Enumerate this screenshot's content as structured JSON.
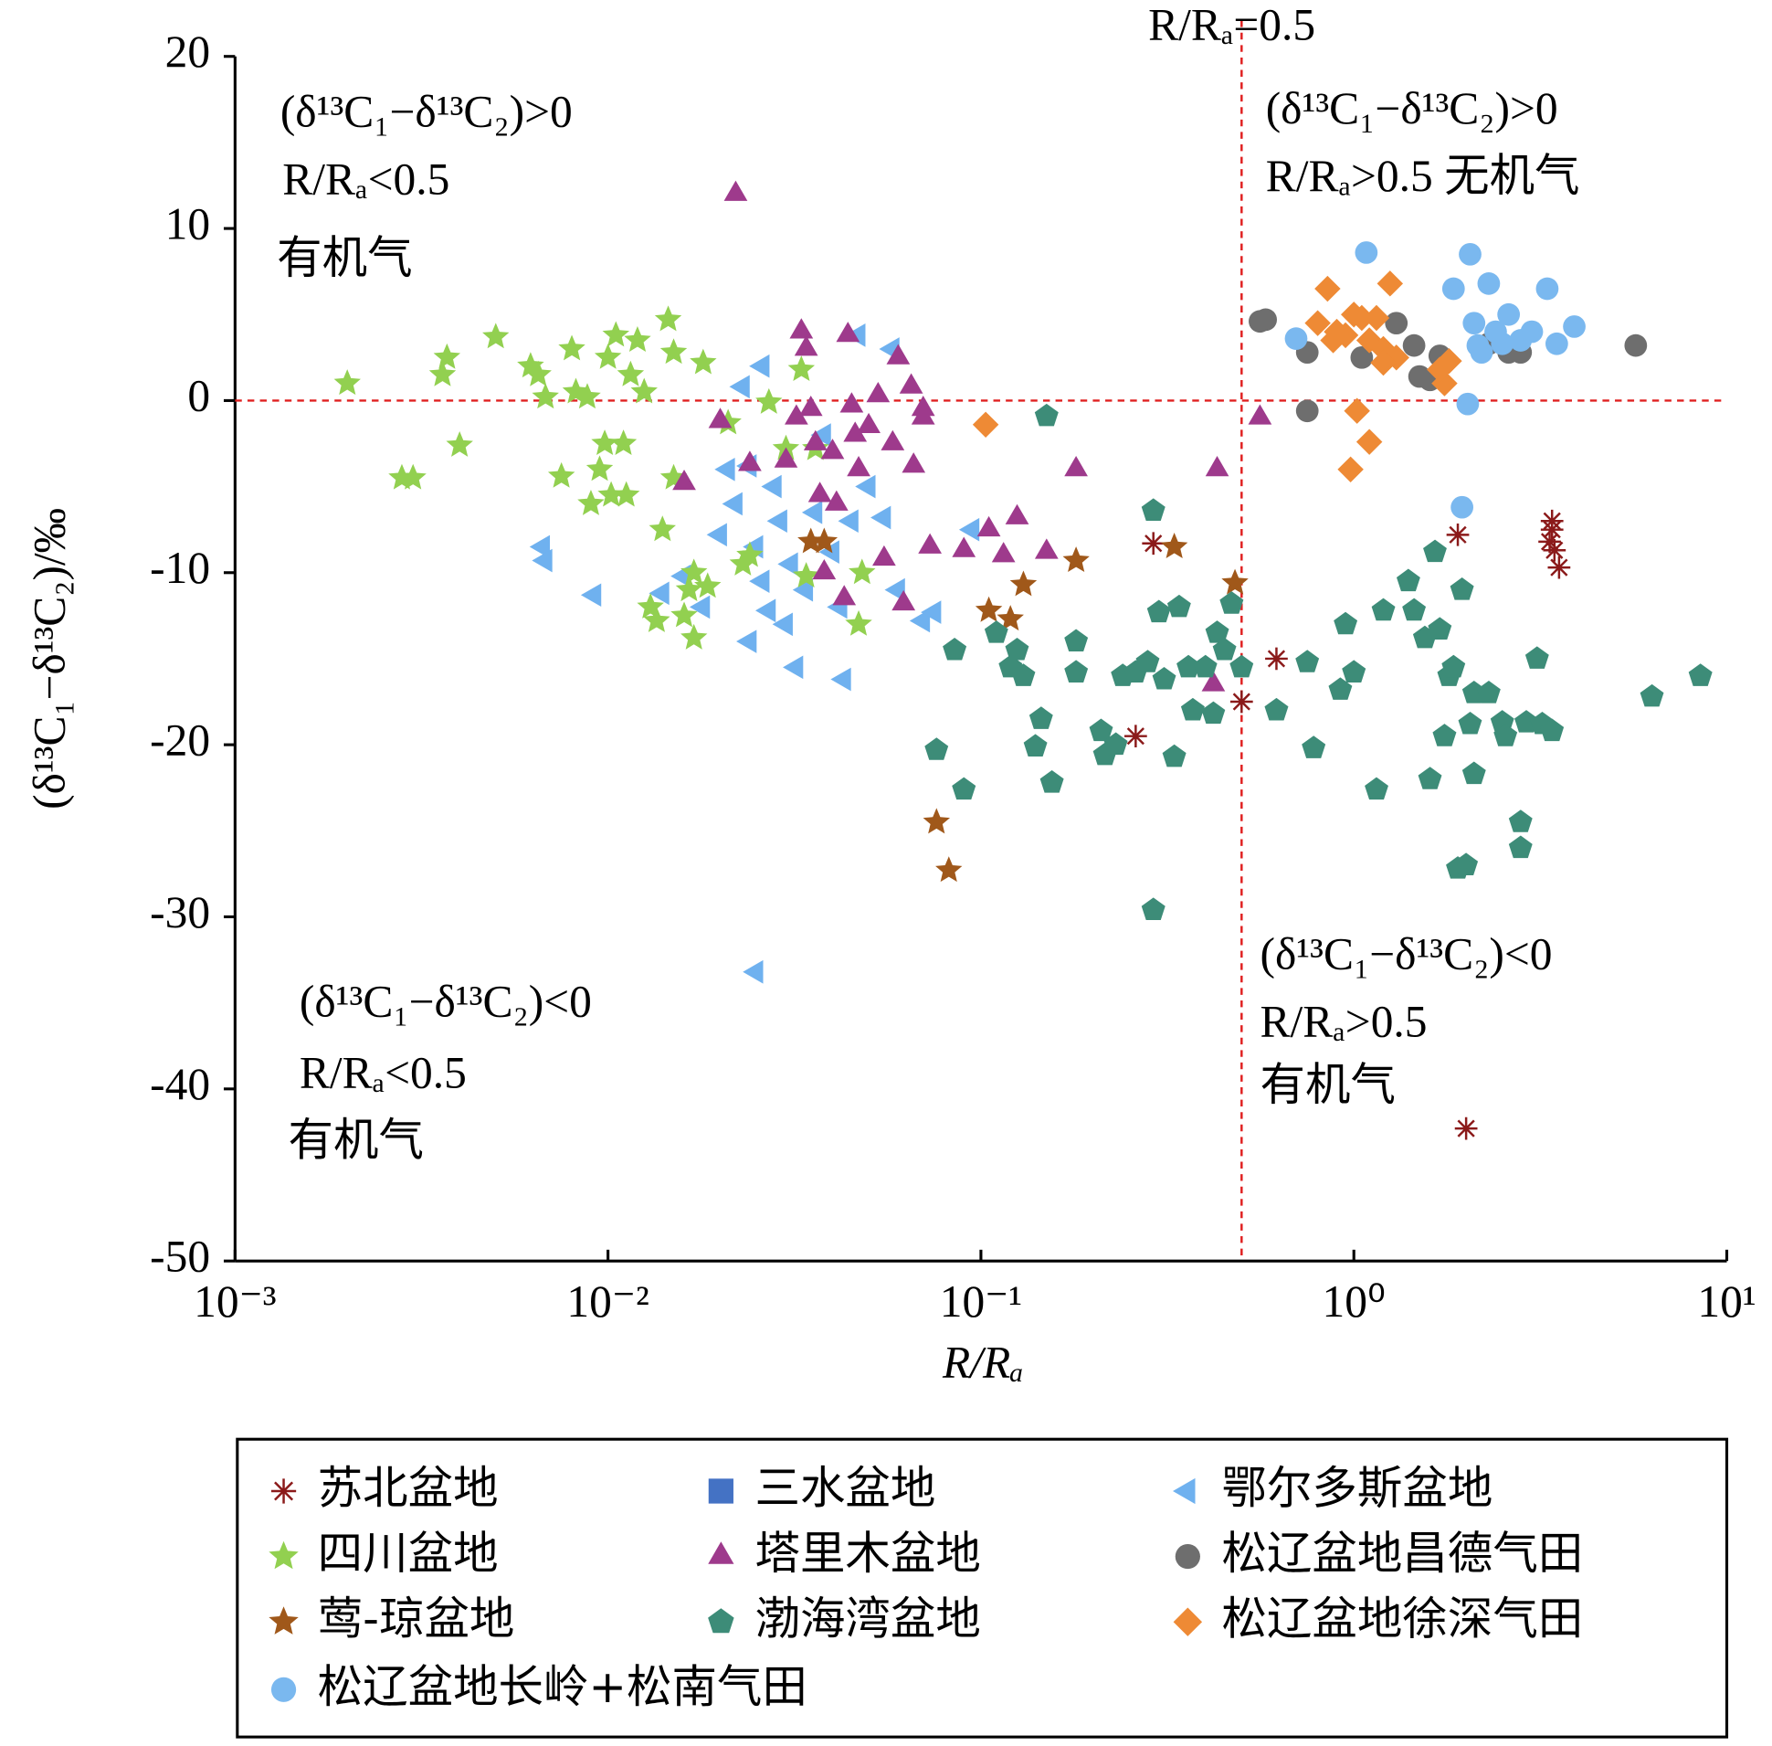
{
  "chart_data": {
    "type": "scatter",
    "x_label": "R/Rₐ",
    "y_label": "(δ¹³C₁−δ¹³C₂)/‰",
    "xlog": true,
    "xlim": [
      0.001,
      10
    ],
    "ylim": [
      -50,
      20
    ],
    "xticks": [
      {
        "value": 0.001,
        "label": "10⁻³"
      },
      {
        "value": 0.01,
        "label": "10⁻²"
      },
      {
        "value": 0.1,
        "label": "10⁻¹"
      },
      {
        "value": 1,
        "label": "10⁰"
      },
      {
        "value": 10,
        "label": "10¹"
      }
    ],
    "yticks": [
      20,
      10,
      0,
      -10,
      -20,
      -30,
      -40,
      -50
    ],
    "vline": 0.5,
    "hline": 0,
    "ref_color": "#e02020",
    "annotations": [
      "R/Rₐ=0.5",
      "(δ¹³C₁−δ¹³C₂)>0",
      "R/Rₐ<0.5",
      "有机气",
      "(δ¹³C₁−δ¹³C₂)>0",
      "R/Rₐ>0.5   无机气",
      "(δ¹³C₁−δ¹³C₂)<0",
      "R/Rₐ>0.5",
      "有机气",
      "(δ¹³C₁−δ¹³C₂)<0",
      "R/Rₐ<0.5",
      "有机气"
    ],
    "series": [
      {
        "name": "苏北盆地",
        "marker": "asterisk",
        "color": "#8b1a1a",
        "x": [
          0.29,
          0.62,
          0.5,
          0.26,
          1.9,
          3.4,
          3.4,
          3.35,
          3.45,
          3.55,
          2.0
        ],
        "values": [
          -8.3,
          -15,
          -17.5,
          -19.5,
          -7.8,
          -7.0,
          -7.5,
          -8.2,
          -8.7,
          -9.7,
          -42.3
        ]
      },
      {
        "name": "三水盆地",
        "marker": "square",
        "color": "#4472c4",
        "x": [],
        "values": []
      },
      {
        "name": "鄂尔多斯盆地",
        "marker": "triangle-left",
        "color": "#6fb1ef",
        "x": [
          0.0067,
          0.0068,
          0.0092,
          0.014,
          0.016,
          0.018,
          0.02,
          0.022,
          0.024,
          0.025,
          0.026,
          0.027,
          0.028,
          0.029,
          0.03,
          0.031,
          0.032,
          0.034,
          0.036,
          0.038,
          0.04,
          0.042,
          0.043,
          0.045,
          0.047,
          0.05,
          0.055,
          0.058,
          0.06,
          0.07,
          0.075,
          0.095,
          0.025,
          0.023,
          0.026,
          0.021,
          0.024
        ],
        "values": [
          -8.5,
          -9.3,
          -11.3,
          -11.2,
          -10.2,
          -12.0,
          -7.8,
          -6.0,
          -3.8,
          -8.5,
          -10.5,
          -12.2,
          -5.0,
          -7.0,
          -13.0,
          -9.5,
          -15.5,
          -11.0,
          -6.5,
          -2.0,
          -8.8,
          -12.0,
          -16.2,
          -7.0,
          3.8,
          -5.0,
          -6.8,
          3.0,
          -11.0,
          -12.8,
          -12.3,
          -7.5,
          -33.2,
          0.8,
          2.0,
          -4.0,
          -14.0
        ]
      },
      {
        "name": "四川盆地",
        "marker": "star",
        "color": "#92d050",
        "x": [
          0.002,
          0.0028,
          0.003,
          0.0036,
          0.0037,
          0.004,
          0.005,
          0.0062,
          0.0065,
          0.0068,
          0.0075,
          0.008,
          0.0082,
          0.0088,
          0.009,
          0.0095,
          0.0098,
          0.01,
          0.0102,
          0.0105,
          0.011,
          0.0112,
          0.0115,
          0.012,
          0.0125,
          0.013,
          0.0135,
          0.014,
          0.0145,
          0.015,
          0.015,
          0.016,
          0.0165,
          0.017,
          0.017,
          0.018,
          0.0185,
          0.021,
          0.023,
          0.024,
          0.027,
          0.03,
          0.033,
          0.034,
          0.036,
          0.048,
          0.047
        ],
        "values": [
          1.0,
          -4.5,
          -4.5,
          1.5,
          2.5,
          -2.6,
          3.7,
          2.0,
          1.5,
          0.2,
          -4.4,
          3.0,
          0.5,
          0.2,
          -6.0,
          -4.0,
          -2.5,
          2.5,
          -5.5,
          3.8,
          -2.5,
          -5.5,
          1.5,
          3.5,
          0.5,
          -12.0,
          -12.8,
          -7.5,
          4.7,
          -4.5,
          2.8,
          -12.5,
          -11.0,
          -13.8,
          -10.0,
          2.2,
          -10.8,
          -1.3,
          -9.5,
          -9.0,
          -0.1,
          -2.8,
          1.8,
          -10.2,
          -2.8,
          -10.0,
          -13.0
        ]
      },
      {
        "name": "塔里木盆地",
        "marker": "triangle-up",
        "color": "#9e3a8c",
        "x": [
          0.022,
          0.016,
          0.02,
          0.024,
          0.03,
          0.032,
          0.033,
          0.034,
          0.035,
          0.036,
          0.037,
          0.038,
          0.04,
          0.041,
          0.043,
          0.044,
          0.045,
          0.046,
          0.047,
          0.05,
          0.053,
          0.055,
          0.058,
          0.06,
          0.062,
          0.065,
          0.066,
          0.07,
          0.073,
          0.09,
          0.105,
          0.115,
          0.125,
          0.15,
          0.18,
          0.43,
          0.56,
          0.42,
          0.07
        ],
        "values": [
          12.0,
          -4.8,
          -1.2,
          -3.7,
          -3.5,
          -1.0,
          4.0,
          3.0,
          -0.5,
          -2.5,
          -5.5,
          -10.0,
          -3.0,
          -6.0,
          -11.5,
          3.8,
          -0.3,
          -2.0,
          -4.0,
          -1.5,
          0.3,
          -9.2,
          -2.5,
          2.5,
          -11.8,
          0.8,
          -3.8,
          -0.5,
          -8.5,
          -8.7,
          -7.5,
          -9.0,
          -6.8,
          -8.8,
          -4.0,
          -4.0,
          -1.0,
          -16.5,
          -1.0
        ]
      },
      {
        "name": "松辽盆地昌德气田",
        "marker": "circle",
        "color": "#6e6e6e",
        "x": [
          0.56,
          0.58,
          0.75,
          0.75,
          1.05,
          1.3,
          1.45,
          1.5,
          1.6,
          1.7,
          2.3,
          2.6,
          2.8,
          5.7
        ],
        "values": [
          4.6,
          4.7,
          2.8,
          -0.6,
          2.5,
          4.5,
          3.2,
          1.4,
          1.2,
          2.6,
          3.3,
          2.8,
          2.8,
          3.2
        ]
      },
      {
        "name": "莺-琼盆地",
        "marker": "star",
        "color": "#a0581a",
        "x": [
          0.035,
          0.038,
          0.076,
          0.082,
          0.105,
          0.12,
          0.13,
          0.18,
          0.33,
          0.48
        ],
        "values": [
          -8.2,
          -8.2,
          -24.5,
          -27.3,
          -12.2,
          -12.7,
          -10.7,
          -9.3,
          -8.5,
          -10.6
        ]
      },
      {
        "name": "渤海湾盆地",
        "marker": "pentagon",
        "color": "#3d8c78",
        "x": [
          0.076,
          0.085,
          0.09,
          0.11,
          0.12,
          0.125,
          0.13,
          0.14,
          0.145,
          0.15,
          0.155,
          0.18,
          0.18,
          0.21,
          0.215,
          0.23,
          0.24,
          0.26,
          0.28,
          0.29,
          0.29,
          0.3,
          0.31,
          0.33,
          0.34,
          0.36,
          0.37,
          0.4,
          0.42,
          0.43,
          0.45,
          0.47,
          0.5,
          0.62,
          0.75,
          0.78,
          0.92,
          0.95,
          1.0,
          1.15,
          1.2,
          1.4,
          1.45,
          1.55,
          1.6,
          1.65,
          1.7,
          1.75,
          1.8,
          1.85,
          1.9,
          1.95,
          2.0,
          2.05,
          2.1,
          2.1,
          2.3,
          2.5,
          2.55,
          2.8,
          2.8,
          2.9,
          3.1,
          3.2,
          3.4,
          6.3,
          8.5
        ],
        "values": [
          -20.3,
          -14.5,
          -22.6,
          -13.5,
          -15.5,
          -14.5,
          -16.0,
          -20.1,
          -18.5,
          -0.9,
          -22.2,
          -14.0,
          -15.8,
          -19.2,
          -20.6,
          -20.0,
          -16.0,
          -15.8,
          -15.2,
          -6.4,
          -29.6,
          -12.3,
          -16.2,
          -20.7,
          -12.0,
          -15.5,
          -18.0,
          -15.5,
          -18.2,
          -13.5,
          -14.5,
          -11.8,
          -15.5,
          -18.0,
          -15.2,
          -20.2,
          -16.8,
          -13.0,
          -15.8,
          -22.6,
          -12.2,
          -10.5,
          -12.2,
          -13.8,
          -22.0,
          -8.8,
          -13.3,
          -19.5,
          -16.0,
          -15.5,
          -27.2,
          -11.0,
          -27.0,
          -18.8,
          -17.0,
          -21.7,
          -17.0,
          -18.7,
          -19.5,
          -24.5,
          -26.0,
          -18.7,
          -15.0,
          -18.8,
          -19.2,
          -17.2,
          -16.0
        ]
      },
      {
        "name": "松辽盆地徐深气田",
        "marker": "diamond",
        "color": "#ee8a35",
        "x": [
          0.103,
          0.85,
          0.8,
          0.9,
          0.95,
          1.0,
          1.05,
          1.1,
          1.15,
          1.2,
          1.25,
          1.3,
          1.02,
          1.1,
          0.98,
          1.8,
          1.75,
          1.7,
          1.2,
          0.88
        ],
        "values": [
          -1.4,
          6.5,
          4.5,
          4.0,
          3.8,
          5.0,
          4.8,
          3.5,
          4.8,
          3.0,
          6.8,
          2.5,
          -0.6,
          -2.4,
          -4.0,
          2.3,
          1.0,
          1.8,
          2.2,
          3.5
        ]
      },
      {
        "name": "松辽盆地长岭+松南气田",
        "marker": "circle",
        "color": "#7ab8ef",
        "x": [
          0.7,
          1.08,
          1.85,
          1.95,
          2.05,
          2.1,
          2.2,
          2.3,
          2.4,
          2.5,
          2.6,
          2.8,
          3.0,
          3.3,
          3.5,
          3.9,
          2.02,
          2.15
        ],
        "values": [
          3.6,
          8.6,
          6.5,
          -6.2,
          8.5,
          4.5,
          2.8,
          6.8,
          4.0,
          3.3,
          5.0,
          3.5,
          4.0,
          6.5,
          3.3,
          4.3,
          -0.2,
          3.2
        ]
      }
    ]
  }
}
